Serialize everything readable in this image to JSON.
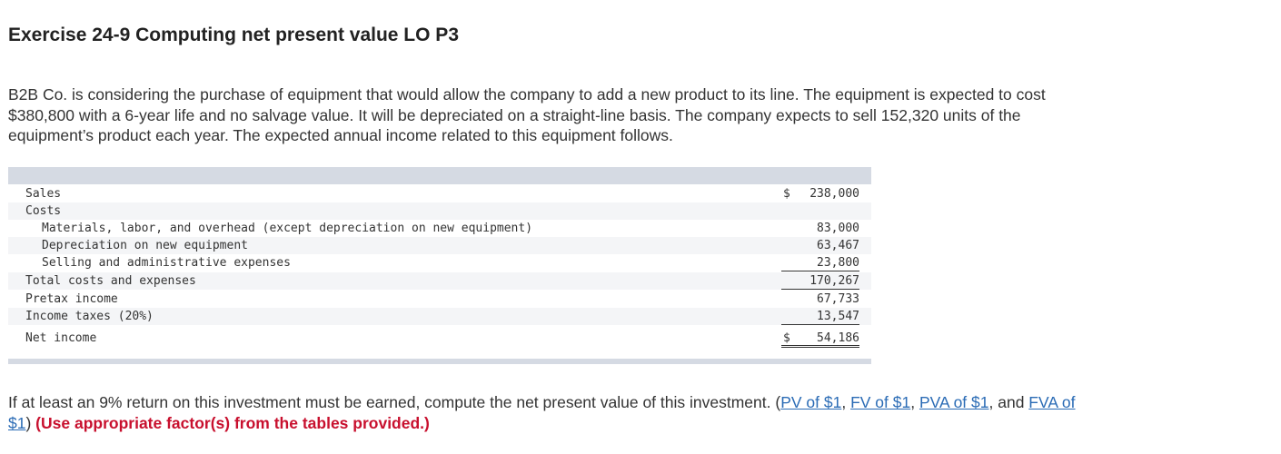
{
  "title": "Exercise 24-9 Computing net present value LO P3",
  "intro": "B2B Co. is considering the purchase of equipment that would allow the company to add a new product to its line. The equipment is expected to cost $380,800 with a 6-year life and no salvage value. It will be depreciated on a straight-line basis. The company expects to sell 152,320 units of the equipment’s product each year. The expected annual income related to this equipment follows.",
  "table": {
    "sales_label": "Sales",
    "sales_dollar": "$",
    "sales_value": "238,000",
    "costs_label": "Costs",
    "materials_label": "Materials, labor, and overhead (except depreciation on new equipment)",
    "materials_value": "83,000",
    "depreciation_label": "Depreciation on new equipment",
    "depreciation_value": "63,467",
    "selling_label": "Selling and administrative expenses",
    "selling_value": "23,800",
    "total_costs_label": "Total costs and expenses",
    "total_costs_value": "170,267",
    "pretax_label": "Pretax income",
    "pretax_value": "67,733",
    "taxes_label": "Income taxes (20%)",
    "taxes_value": "13,547",
    "net_income_label": "Net income",
    "net_income_dollar": "$",
    "net_income_value": "54,186"
  },
  "question": {
    "text": "If at least an 9% return on this investment must be earned, compute the net present value of this investment. (",
    "link_pv": "PV of $1",
    "sep1": ", ",
    "link_fv": "FV of $1",
    "sep2": ", ",
    "link_pva": "PVA of $1",
    "sep3": ", and ",
    "link_fva": "FVA of $1",
    "close": ") ",
    "instruction": "(Use appropriate factor(s) from the tables provided.)"
  }
}
